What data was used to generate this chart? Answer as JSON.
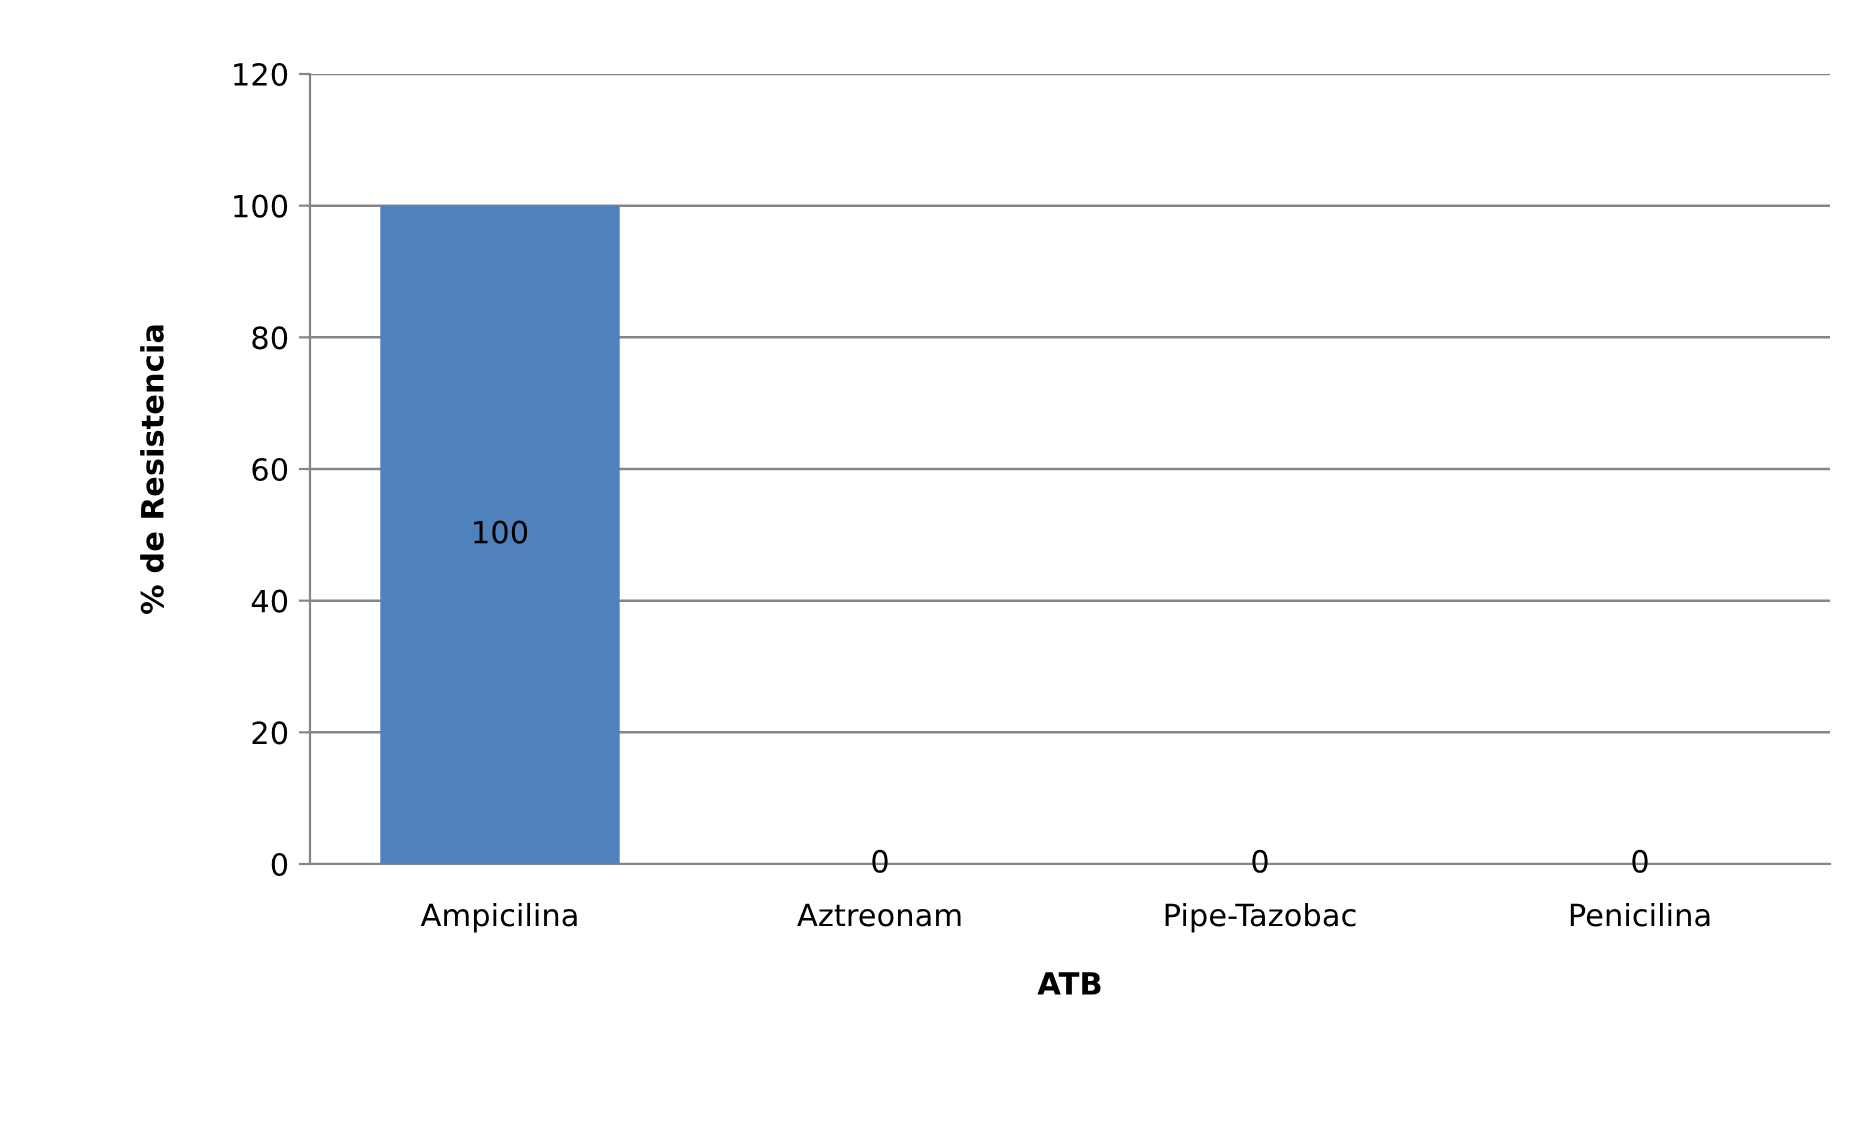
{
  "chart_data": {
    "type": "bar",
    "xlabel": "ATB",
    "ylabel": "% de Resistencia",
    "categories": [
      "Ampicilina",
      "Aztreonam",
      "Pipe-Tazobac",
      "Penicilina"
    ],
    "values": [
      100,
      0,
      0,
      0
    ],
    "color": "#4f81bd",
    "ylim": [
      0,
      120
    ],
    "yticks": [
      0,
      20,
      40,
      60,
      80,
      100,
      120
    ],
    "grid": "y",
    "data_labels": true
  }
}
